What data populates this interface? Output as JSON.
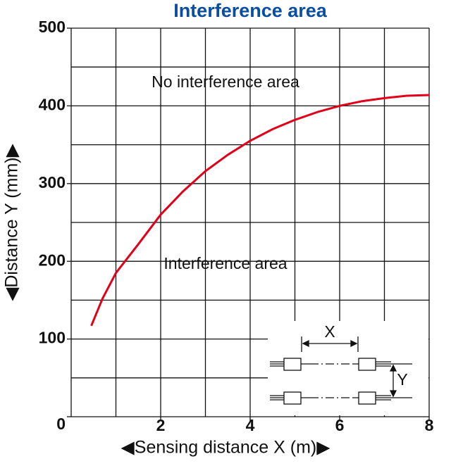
{
  "chart_data": {
    "type": "line",
    "title": "Interference area",
    "x_label": "◀Sensing distance X (m)▶",
    "y_label": "◀Distance Y (mm)▶",
    "x": [
      0.45,
      0.7,
      1,
      1.5,
      2,
      2.5,
      3,
      3.5,
      4,
      4.5,
      5,
      5.5,
      6,
      6.5,
      7,
      7.5,
      8
    ],
    "series": [
      {
        "color": "#e0001a",
        "values": [
          117,
          152,
          185,
          222,
          260,
          290,
          316,
          337,
          355,
          370,
          382,
          392,
          400,
          406,
          410,
          413,
          414
        ]
      }
    ],
    "xlim": [
      0,
      8
    ],
    "ylim": [
      0,
      500
    ],
    "xticks": [
      2,
      4,
      6,
      8
    ],
    "yticks": [
      0,
      100,
      200,
      300,
      400,
      500
    ],
    "xgrid": [
      0,
      1,
      2,
      3,
      4,
      5,
      6,
      7,
      8
    ],
    "ygrid": [
      0,
      50,
      100,
      150,
      200,
      250,
      300,
      350,
      400,
      450,
      500
    ],
    "grid": true,
    "annotations": [
      "No interference area",
      "Interference area"
    ],
    "inset_labels": [
      "X",
      "Y"
    ]
  }
}
